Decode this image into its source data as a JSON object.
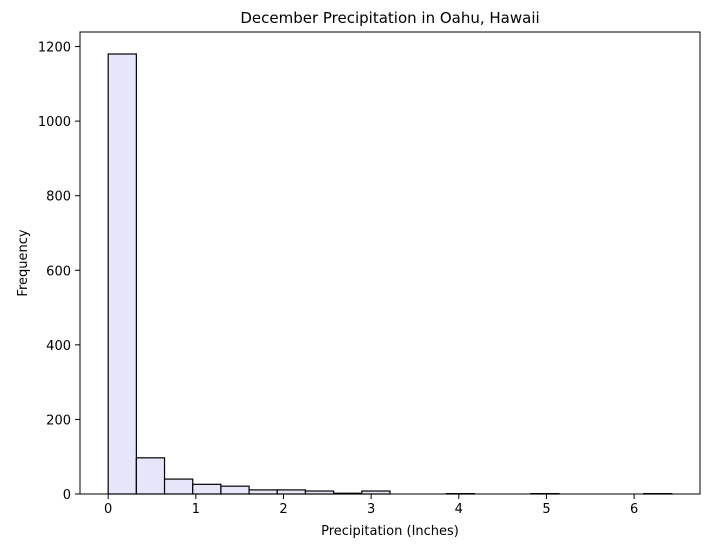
{
  "chart_data": {
    "type": "bar",
    "title": "December Precipitation in Oahu, Hawaii",
    "xlabel": "Precipitation (Inches)",
    "ylabel": "Frequency",
    "bar_color": "#e6e6fa",
    "edge_color": "#000000",
    "xlim": [
      -0.3215,
      6.7515
    ],
    "ylim": [
      0,
      1239
    ],
    "x_ticks": [
      0,
      1,
      2,
      3,
      4,
      5,
      6
    ],
    "y_ticks": [
      0,
      200,
      400,
      600,
      800,
      1000,
      1200
    ],
    "bins": [
      {
        "x0": 0.0,
        "x1": 0.3215,
        "count": 1180
      },
      {
        "x0": 0.3215,
        "x1": 0.643,
        "count": 97
      },
      {
        "x0": 0.643,
        "x1": 0.9645,
        "count": 40
      },
      {
        "x0": 0.9645,
        "x1": 1.286,
        "count": 26
      },
      {
        "x0": 1.286,
        "x1": 1.6075,
        "count": 21
      },
      {
        "x0": 1.6075,
        "x1": 1.929,
        "count": 11
      },
      {
        "x0": 1.929,
        "x1": 2.2505,
        "count": 11
      },
      {
        "x0": 2.2505,
        "x1": 2.572,
        "count": 8
      },
      {
        "x0": 2.572,
        "x1": 2.8935,
        "count": 2
      },
      {
        "x0": 2.8935,
        "x1": 3.215,
        "count": 8
      },
      {
        "x0": 3.215,
        "x1": 3.5365,
        "count": 0
      },
      {
        "x0": 3.5365,
        "x1": 3.858,
        "count": 0
      },
      {
        "x0": 3.858,
        "x1": 4.1795,
        "count": 1
      },
      {
        "x0": 4.1795,
        "x1": 4.501,
        "count": 0
      },
      {
        "x0": 4.501,
        "x1": 4.8225,
        "count": 0
      },
      {
        "x0": 4.8225,
        "x1": 5.144,
        "count": 1
      },
      {
        "x0": 5.144,
        "x1": 5.4655,
        "count": 0
      },
      {
        "x0": 5.4655,
        "x1": 5.787,
        "count": 0
      },
      {
        "x0": 5.787,
        "x1": 6.1085,
        "count": 0
      },
      {
        "x0": 6.1085,
        "x1": 6.43,
        "count": 1
      }
    ]
  }
}
